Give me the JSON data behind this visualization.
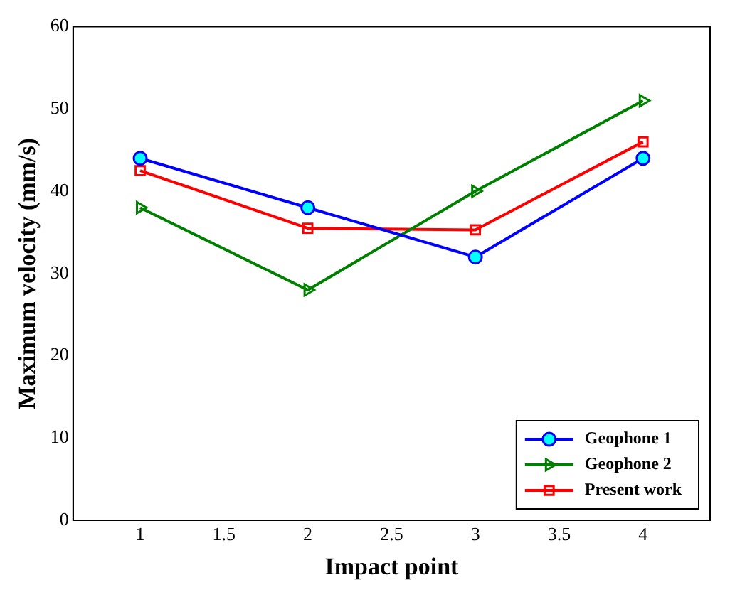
{
  "chart_data": {
    "type": "line",
    "xlabel": "Impact point",
    "ylabel": "Maximum velocity (mm/s)",
    "x": [
      1,
      2,
      3,
      4
    ],
    "series": [
      {
        "name": "Geophone 1",
        "color": "#0000ff",
        "marker": "circle",
        "values": [
          44,
          38,
          32,
          44
        ]
      },
      {
        "name": "Geophone 2",
        "color": "#008000",
        "marker": "triangle",
        "values": [
          38,
          28,
          40,
          51
        ]
      },
      {
        "name": "Present work",
        "color": "#ff0000",
        "marker": "square",
        "values": [
          42.5,
          35.5,
          35.3,
          46
        ]
      }
    ],
    "xlim": [
      0.6,
      4.4
    ],
    "xticks": [
      1,
      1.5,
      2,
      2.5,
      3,
      3.5,
      4
    ],
    "ylim": [
      0,
      60
    ],
    "yticks": [
      0,
      10,
      20,
      30,
      40,
      50,
      60
    ],
    "grid": false,
    "legend": "bottom right",
    "line_style": "solid"
  }
}
